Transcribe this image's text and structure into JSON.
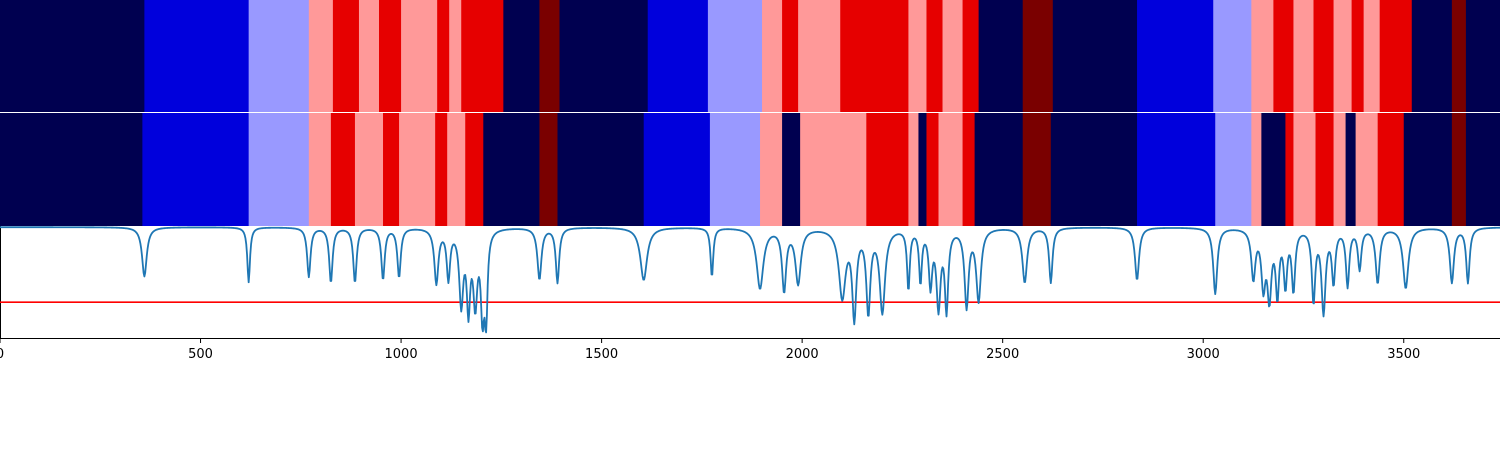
{
  "chart_data": {
    "type": "heatmap",
    "title": "",
    "xlabel": "",
    "ylabel": "",
    "xlim": [
      0,
      3740
    ],
    "xticks": [
      0,
      500,
      1000,
      1500,
      2000,
      2500,
      3000,
      3500
    ],
    "xtick_labels": [
      "0",
      "500",
      "1000",
      "1500",
      "2000",
      "2500",
      "3000",
      "3500"
    ],
    "palette": {
      "0": "#000050",
      "1": "#0000dc",
      "2": "#9999ff",
      "3": "#ff9999",
      "4": "#e60000",
      "5": "#7a0000"
    },
    "state_tracks": [
      {
        "name": "track-1",
        "segments": [
          [
            0,
            360,
            0
          ],
          [
            360,
            620,
            1
          ],
          [
            620,
            770,
            2
          ],
          [
            770,
            830,
            3
          ],
          [
            830,
            895,
            4
          ],
          [
            895,
            945,
            3
          ],
          [
            945,
            1000,
            4
          ],
          [
            1000,
            1090,
            3
          ],
          [
            1090,
            1120,
            4
          ],
          [
            1120,
            1150,
            3
          ],
          [
            1150,
            1255,
            4
          ],
          [
            1255,
            1345,
            0
          ],
          [
            1345,
            1395,
            5
          ],
          [
            1395,
            1615,
            0
          ],
          [
            1615,
            1765,
            1
          ],
          [
            1765,
            1900,
            2
          ],
          [
            1900,
            1950,
            3
          ],
          [
            1950,
            1990,
            4
          ],
          [
            1990,
            2095,
            3
          ],
          [
            2095,
            2265,
            4
          ],
          [
            2265,
            2310,
            3
          ],
          [
            2310,
            2350,
            4
          ],
          [
            2350,
            2400,
            3
          ],
          [
            2400,
            2440,
            4
          ],
          [
            2440,
            2550,
            0
          ],
          [
            2550,
            2625,
            5
          ],
          [
            2625,
            2835,
            0
          ],
          [
            2835,
            3025,
            1
          ],
          [
            3025,
            3120,
            2
          ],
          [
            3120,
            3175,
            3
          ],
          [
            3175,
            3225,
            4
          ],
          [
            3225,
            3275,
            3
          ],
          [
            3275,
            3325,
            4
          ],
          [
            3325,
            3370,
            3
          ],
          [
            3370,
            3400,
            4
          ],
          [
            3400,
            3440,
            3
          ],
          [
            3440,
            3520,
            4
          ],
          [
            3520,
            3620,
            0
          ],
          [
            3620,
            3655,
            5
          ],
          [
            3655,
            3740,
            0
          ]
        ]
      },
      {
        "name": "track-2",
        "segments": [
          [
            0,
            355,
            0
          ],
          [
            355,
            620,
            1
          ],
          [
            620,
            770,
            2
          ],
          [
            770,
            825,
            3
          ],
          [
            825,
            885,
            4
          ],
          [
            885,
            955,
            3
          ],
          [
            955,
            995,
            4
          ],
          [
            995,
            1085,
            3
          ],
          [
            1085,
            1115,
            4
          ],
          [
            1115,
            1160,
            3
          ],
          [
            1160,
            1205,
            4
          ],
          [
            1205,
            1345,
            0
          ],
          [
            1345,
            1390,
            5
          ],
          [
            1390,
            1605,
            0
          ],
          [
            1605,
            1770,
            1
          ],
          [
            1770,
            1895,
            2
          ],
          [
            1895,
            1950,
            3
          ],
          [
            1950,
            1995,
            0
          ],
          [
            1995,
            2160,
            3
          ],
          [
            2160,
            2265,
            4
          ],
          [
            2265,
            2290,
            3
          ],
          [
            2290,
            2310,
            0
          ],
          [
            2310,
            2340,
            4
          ],
          [
            2340,
            2400,
            3
          ],
          [
            2400,
            2430,
            4
          ],
          [
            2430,
            2550,
            0
          ],
          [
            2550,
            2620,
            5
          ],
          [
            2620,
            2835,
            0
          ],
          [
            2835,
            3030,
            1
          ],
          [
            3030,
            3120,
            2
          ],
          [
            3120,
            3145,
            3
          ],
          [
            3145,
            3205,
            0
          ],
          [
            3205,
            3225,
            4
          ],
          [
            3225,
            3280,
            3
          ],
          [
            3280,
            3325,
            4
          ],
          [
            3325,
            3355,
            3
          ],
          [
            3355,
            3380,
            0
          ],
          [
            3380,
            3435,
            3
          ],
          [
            3435,
            3500,
            4
          ],
          [
            3500,
            3620,
            0
          ],
          [
            3620,
            3655,
            5
          ],
          [
            3655,
            3740,
            0
          ]
        ]
      }
    ],
    "signal": {
      "color": "#1f77b4",
      "ylim": [
        0,
        1
      ],
      "baseline": 0.99,
      "threshold": 0.32,
      "threshold_color": "#ff0000",
      "dips": [
        [
          360,
          0.55,
          7
        ],
        [
          620,
          0.5,
          4
        ],
        [
          770,
          0.55,
          5
        ],
        [
          825,
          0.5,
          5
        ],
        [
          885,
          0.5,
          5
        ],
        [
          955,
          0.53,
          5
        ],
        [
          995,
          0.55,
          5
        ],
        [
          1088,
          0.5,
          6
        ],
        [
          1118,
          0.55,
          5
        ],
        [
          1150,
          0.33,
          6
        ],
        [
          1168,
          0.31,
          5
        ],
        [
          1185,
          0.35,
          6
        ],
        [
          1203,
          0.27,
          5
        ],
        [
          1212,
          0.22,
          4
        ],
        [
          1345,
          0.53,
          6
        ],
        [
          1390,
          0.5,
          5
        ],
        [
          1605,
          0.52,
          10
        ],
        [
          1775,
          0.55,
          4
        ],
        [
          1895,
          0.45,
          10
        ],
        [
          1955,
          0.44,
          6
        ],
        [
          1990,
          0.5,
          8
        ],
        [
          2100,
          0.38,
          10
        ],
        [
          2130,
          0.22,
          6
        ],
        [
          2165,
          0.26,
          6
        ],
        [
          2200,
          0.25,
          8
        ],
        [
          2265,
          0.45,
          4
        ],
        [
          2295,
          0.52,
          4
        ],
        [
          2320,
          0.5,
          5
        ],
        [
          2340,
          0.3,
          6
        ],
        [
          2360,
          0.28,
          5
        ],
        [
          2410,
          0.3,
          6
        ],
        [
          2440,
          0.35,
          7
        ],
        [
          2555,
          0.5,
          7
        ],
        [
          2620,
          0.5,
          5
        ],
        [
          2835,
          0.52,
          6
        ],
        [
          3030,
          0.4,
          6
        ],
        [
          3125,
          0.55,
          6
        ],
        [
          3150,
          0.5,
          6
        ],
        [
          3165,
          0.4,
          6
        ],
        [
          3185,
          0.42,
          5
        ],
        [
          3205,
          0.5,
          5
        ],
        [
          3225,
          0.45,
          5
        ],
        [
          3275,
          0.35,
          5
        ],
        [
          3300,
          0.25,
          6
        ],
        [
          3325,
          0.52,
          5
        ],
        [
          3360,
          0.48,
          5
        ],
        [
          3390,
          0.63,
          5
        ],
        [
          3435,
          0.5,
          6
        ],
        [
          3505,
          0.45,
          8
        ],
        [
          3620,
          0.5,
          6
        ],
        [
          3660,
          0.5,
          5
        ]
      ]
    }
  }
}
